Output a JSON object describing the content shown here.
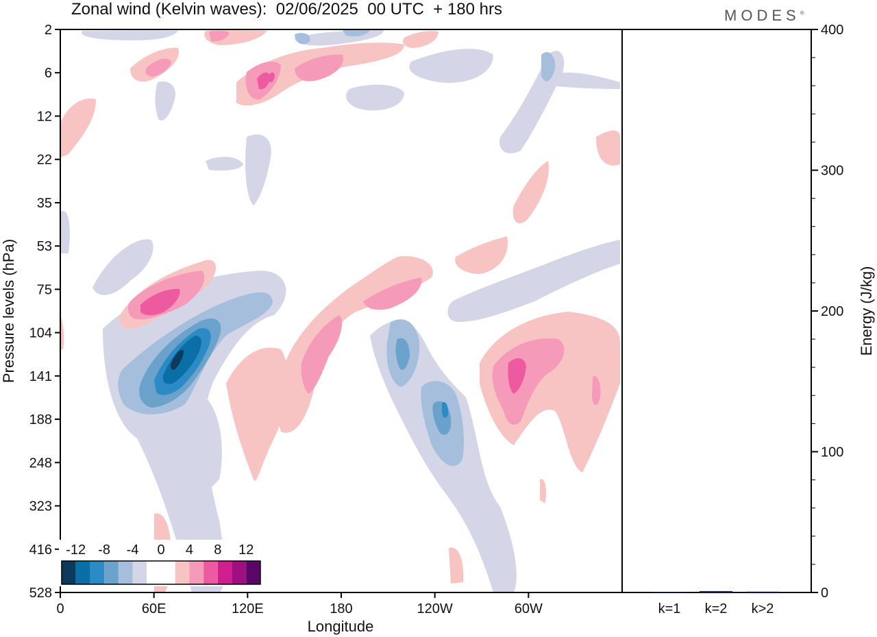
{
  "header": {
    "title": "Zonal wind (Kelvin waves):  02/06/2025  00 UTC  + 180 hrs",
    "brand": "MODES"
  },
  "chart_data": [
    {
      "type": "heatmap",
      "title": "Zonal wind (Kelvin waves):  02/06/2025  00 UTC  + 180 hrs",
      "xlabel": "Longitude",
      "ylabel": "Pressure levels (hPa)",
      "x_ticks": [
        "0",
        "60E",
        "120E",
        "180",
        "120W",
        "60W"
      ],
      "x_tick_values": [
        0,
        60,
        120,
        180,
        240,
        300
      ],
      "xlim": [
        0,
        360
      ],
      "y_ticks": [
        "2",
        "6",
        "12",
        "22",
        "35",
        "53",
        "75",
        "104",
        "141",
        "188",
        "248",
        "323",
        "416",
        "528"
      ],
      "y_scale": "categorical-pressure-levels (top = 2, bottom = 528)",
      "colorbar": {
        "labels": [
          "-12",
          "-8",
          "-4",
          "0",
          "4",
          "8",
          "12"
        ],
        "colors": [
          "#0b3a5a",
          "#0a6fa6",
          "#2c8ac4",
          "#6aa2cc",
          "#a4bedb",
          "#d4d6e7",
          "#ffffff",
          "#ffffff",
          "#f8c4c3",
          "#f59ab9",
          "#ee5aa0",
          "#d01f8c",
          "#9e0f82",
          "#5a0668"
        ]
      },
      "features": [
        {
          "sign": "negative",
          "lon": 75,
          "level": "141",
          "peak": -13
        },
        {
          "sign": "negative",
          "lon": 222,
          "level": "141",
          "peak": -8
        },
        {
          "sign": "negative",
          "lon": 245,
          "level": "188",
          "peak": -8
        },
        {
          "sign": "positive",
          "lon": 58,
          "level": "104",
          "peak": 8
        },
        {
          "sign": "positive",
          "lon": 173,
          "level": "141",
          "peak": 6
        },
        {
          "sign": "positive",
          "lon": 208,
          "level": "75",
          "peak": 6
        },
        {
          "sign": "positive",
          "lon": 290,
          "level": "141",
          "peak": 9
        },
        {
          "sign": "positive",
          "lon": 130,
          "level": "6",
          "peak": 8
        },
        {
          "sign": "positive",
          "lon": 160,
          "level": "6",
          "peak": 5
        }
      ]
    },
    {
      "type": "bar",
      "categories": [
        "k=1",
        "k=2",
        "k>2"
      ],
      "values": [
        0.3,
        1.0,
        0.6
      ],
      "ylabel": "Energy (J/kg)",
      "ylim": [
        0,
        400
      ],
      "y_ticks": [
        "0",
        "100",
        "200",
        "300",
        "400"
      ]
    }
  ]
}
